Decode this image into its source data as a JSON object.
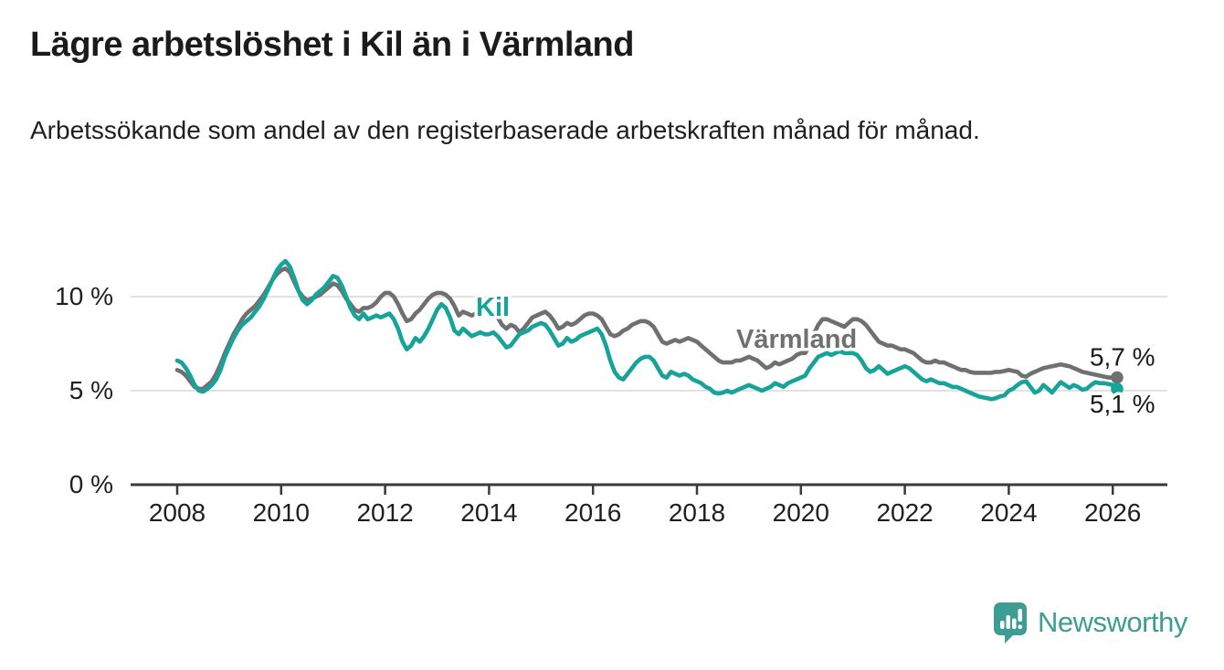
{
  "header": {
    "title": "Lägre arbetslöshet i Kil än i Värmland",
    "subtitle": "Arbetssökande som andel av den registerbaserade arbetskraften månad för månad."
  },
  "chart_data": {
    "type": "line",
    "title": "Lägre arbetslöshet i Kil än i Värmland",
    "subtitle": "Arbetssökande som andel av den registerbaserade arbetskraften månad för månad.",
    "xlabel": "",
    "ylabel": "",
    "x_start_year": 2008,
    "x_start_month": 1,
    "frequency": "monthly",
    "ylim": [
      0,
      12.5
    ],
    "xlim": [
      2007.1,
      2027.1
    ],
    "grid": "horizontal",
    "legend_position": "inline-labels",
    "yticks": [
      {
        "value": 0,
        "label": "0 %"
      },
      {
        "value": 5,
        "label": "5 %"
      },
      {
        "value": 10,
        "label": "10 %"
      }
    ],
    "xticks": [
      {
        "value": 2008,
        "label": "2008"
      },
      {
        "value": 2010,
        "label": "2010"
      },
      {
        "value": 2012,
        "label": "2012"
      },
      {
        "value": 2014,
        "label": "2014"
      },
      {
        "value": 2016,
        "label": "2016"
      },
      {
        "value": 2018,
        "label": "2018"
      },
      {
        "value": 2020,
        "label": "2020"
      },
      {
        "value": 2022,
        "label": "2022"
      },
      {
        "value": 2024,
        "label": "2024"
      },
      {
        "value": 2026,
        "label": "2026"
      }
    ],
    "series": [
      {
        "name": "Värmland",
        "color": "#707070",
        "end_label": "5,7 %",
        "last_value": 5.7,
        "values": [
          6.1,
          6.0,
          5.8,
          5.5,
          5.2,
          5.1,
          5.1,
          5.3,
          5.5,
          5.9,
          6.4,
          7.0,
          7.5,
          8.0,
          8.4,
          8.8,
          9.1,
          9.3,
          9.5,
          9.8,
          10.1,
          10.5,
          10.9,
          11.2,
          11.4,
          11.5,
          11.3,
          10.8,
          10.3,
          10.0,
          9.8,
          9.9,
          10.0,
          10.1,
          10.3,
          10.5,
          10.7,
          10.6,
          10.3,
          9.9,
          9.6,
          9.3,
          9.2,
          9.4,
          9.4,
          9.5,
          9.7,
          10.0,
          10.2,
          10.2,
          10.0,
          9.6,
          9.1,
          8.7,
          8.8,
          9.1,
          9.3,
          9.6,
          9.9,
          10.1,
          10.2,
          10.2,
          10.1,
          9.9,
          9.5,
          9.0,
          9.2,
          9.1,
          9.0,
          9.1,
          9.2,
          9.2,
          9.2,
          9.1,
          8.9,
          8.5,
          8.3,
          8.5,
          8.4,
          8.1,
          8.3,
          8.6,
          8.9,
          9.0,
          9.1,
          9.2,
          9.0,
          8.7,
          8.3,
          8.4,
          8.6,
          8.5,
          8.6,
          8.8,
          9.0,
          9.1,
          9.1,
          9.0,
          8.8,
          8.4,
          8.0,
          7.9,
          8.0,
          8.2,
          8.3,
          8.5,
          8.6,
          8.7,
          8.7,
          8.6,
          8.4,
          8.0,
          7.6,
          7.5,
          7.6,
          7.7,
          7.6,
          7.7,
          7.8,
          7.7,
          7.6,
          7.4,
          7.2,
          7.0,
          6.8,
          6.6,
          6.5,
          6.5,
          6.5,
          6.6,
          6.6,
          6.7,
          6.8,
          6.7,
          6.6,
          6.4,
          6.2,
          6.3,
          6.5,
          6.4,
          6.5,
          6.6,
          6.7,
          6.9,
          7.0,
          7.0,
          7.4,
          8.0,
          8.5,
          8.8,
          8.8,
          8.7,
          8.6,
          8.5,
          8.4,
          8.6,
          8.8,
          8.8,
          8.7,
          8.5,
          8.2,
          7.9,
          7.6,
          7.5,
          7.4,
          7.4,
          7.3,
          7.2,
          7.2,
          7.1,
          7.0,
          6.8,
          6.6,
          6.5,
          6.5,
          6.6,
          6.5,
          6.5,
          6.4,
          6.3,
          6.2,
          6.1,
          6.1,
          6.0,
          5.95,
          5.95,
          5.95,
          5.95,
          5.95,
          6.0,
          6.0,
          6.05,
          6.1,
          6.05,
          6.0,
          5.8,
          5.75,
          5.9,
          6.0,
          6.1,
          6.2,
          6.25,
          6.3,
          6.35,
          6.4,
          6.35,
          6.3,
          6.2,
          6.1,
          6.0,
          5.95,
          5.9,
          5.85,
          5.8,
          5.75,
          5.7,
          5.7,
          5.7
        ]
      },
      {
        "name": "Kil",
        "color": "#15a39a",
        "end_label": "5,1 %",
        "last_value": 5.1,
        "values": [
          6.6,
          6.5,
          6.2,
          5.8,
          5.3,
          5.0,
          4.95,
          5.1,
          5.3,
          5.6,
          6.1,
          6.8,
          7.3,
          7.8,
          8.2,
          8.5,
          8.7,
          8.9,
          9.2,
          9.5,
          9.9,
          10.4,
          10.9,
          11.4,
          11.7,
          11.9,
          11.6,
          11.0,
          10.3,
          9.8,
          9.6,
          9.8,
          10.1,
          10.3,
          10.5,
          10.8,
          11.1,
          11.0,
          10.6,
          10.0,
          9.4,
          9.0,
          8.8,
          9.1,
          8.8,
          8.9,
          9.0,
          8.9,
          9.0,
          9.1,
          8.8,
          8.3,
          7.6,
          7.2,
          7.4,
          7.8,
          7.6,
          7.9,
          8.3,
          8.8,
          9.3,
          9.6,
          9.4,
          8.9,
          8.2,
          8.0,
          8.3,
          8.1,
          7.9,
          8.0,
          8.1,
          8.0,
          8.0,
          8.1,
          7.9,
          7.6,
          7.3,
          7.4,
          7.7,
          8.0,
          8.1,
          8.2,
          8.4,
          8.5,
          8.6,
          8.5,
          8.2,
          7.8,
          7.4,
          7.5,
          7.8,
          7.6,
          7.7,
          7.9,
          8.0,
          8.1,
          8.2,
          8.3,
          8.0,
          7.4,
          6.6,
          6.0,
          5.7,
          5.6,
          5.9,
          6.2,
          6.5,
          6.7,
          6.8,
          6.8,
          6.6,
          6.2,
          5.8,
          5.7,
          6.0,
          5.9,
          5.8,
          5.9,
          5.8,
          5.6,
          5.5,
          5.4,
          5.2,
          5.1,
          4.9,
          4.85,
          4.9,
          5.0,
          4.9,
          5.0,
          5.1,
          5.2,
          5.3,
          5.2,
          5.1,
          5.0,
          5.1,
          5.2,
          5.4,
          5.3,
          5.2,
          5.4,
          5.5,
          5.6,
          5.7,
          5.8,
          6.2,
          6.5,
          6.8,
          6.9,
          7.0,
          6.9,
          7.0,
          7.1,
          7.0,
          7.0,
          7.0,
          6.9,
          6.6,
          6.2,
          6.0,
          6.1,
          6.3,
          6.1,
          5.9,
          6.0,
          6.1,
          6.2,
          6.3,
          6.2,
          6.0,
          5.8,
          5.6,
          5.5,
          5.6,
          5.5,
          5.4,
          5.4,
          5.3,
          5.2,
          5.2,
          5.1,
          5.0,
          4.9,
          4.8,
          4.7,
          4.65,
          4.6,
          4.55,
          4.6,
          4.7,
          4.75,
          5.0,
          5.1,
          5.3,
          5.45,
          5.5,
          5.2,
          4.9,
          5.0,
          5.3,
          5.1,
          4.9,
          5.2,
          5.45,
          5.3,
          5.15,
          5.3,
          5.2,
          5.05,
          5.1,
          5.3,
          5.45,
          5.4,
          5.4,
          5.35,
          5.3,
          5.1
        ]
      }
    ]
  },
  "footer": {
    "brand": "Newsworthy",
    "brand_color": "#3d9d93"
  },
  "colors": {
    "kil_line": "#15a39a",
    "varmland_line": "#707070",
    "gridline": "#d8d8d8",
    "axis": "#3a3a3a",
    "text": "#1f1f1f",
    "background": "#ffffff"
  }
}
